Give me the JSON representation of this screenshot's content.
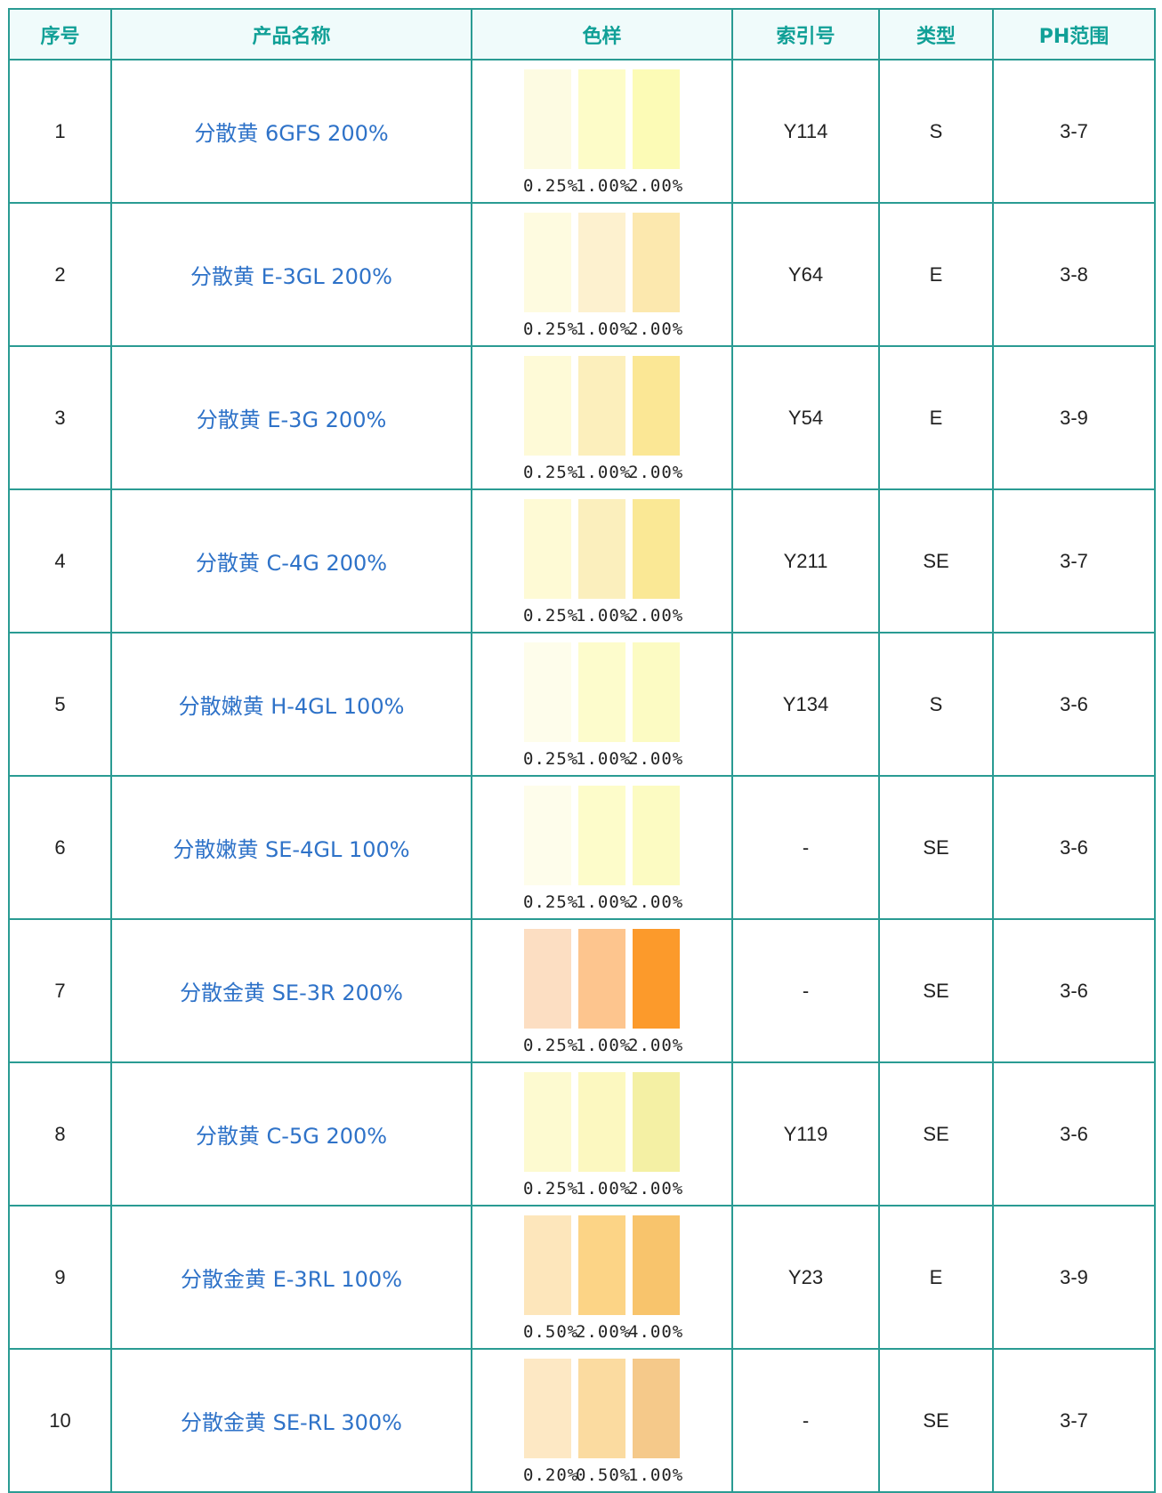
{
  "headers": {
    "no": "序号",
    "name": "产品名称",
    "sample": "色样",
    "index": "索引号",
    "type": "类型",
    "ph": "PH范围"
  },
  "rows": [
    {
      "no": "1",
      "name": "分散黄 6GFS 200%",
      "index": "Y114",
      "type": "S",
      "ph": "3-7",
      "swatches": [
        "#fdfbe2",
        "#fdfcc8",
        "#fcfbb6"
      ],
      "labels": [
        "0.25%",
        "1.00%",
        "2.00%"
      ]
    },
    {
      "no": "2",
      "name": "分散黄 E-3GL 200%",
      "index": "Y64",
      "type": "E",
      "ph": "3-8",
      "swatches": [
        "#fefbe0",
        "#fdf1cf",
        "#fce8ae"
      ],
      "labels": [
        "0.25%",
        "1.00%",
        "2.00%"
      ]
    },
    {
      "no": "3",
      "name": "分散黄 E-3G 200%",
      "index": "Y54",
      "type": "E",
      "ph": "3-9",
      "swatches": [
        "#fefad7",
        "#fcefbc",
        "#fbe795"
      ],
      "labels": [
        "0.25%",
        "1.00%",
        "2.00%"
      ]
    },
    {
      "no": "4",
      "name": "分散黄 C-4G 200%",
      "index": "Y211",
      "type": "SE",
      "ph": "3-7",
      "swatches": [
        "#fefad5",
        "#fbefbd",
        "#fae895"
      ],
      "labels": [
        "0.25%",
        "1.00%",
        "2.00%"
      ]
    },
    {
      "no": "5",
      "name": "分散嫩黄 H-4GL 100%",
      "index": "Y134",
      "type": "S",
      "ph": "3-6",
      "swatches": [
        "#fefdeb",
        "#fdfccc",
        "#fcfbc3"
      ],
      "labels": [
        "0.25%",
        "1.00%",
        "2.00%"
      ]
    },
    {
      "no": "6",
      "name": "分散嫩黄 SE-4GL 100%",
      "index": "-",
      "type": "SE",
      "ph": "3-6",
      "swatches": [
        "#fefdeb",
        "#fdfcca",
        "#fcfbc2"
      ],
      "labels": [
        "0.25%",
        "1.00%",
        "2.00%"
      ]
    },
    {
      "no": "7",
      "name": "分散金黄 SE-3R 200%",
      "index": "-",
      "type": "SE",
      "ph": "3-6",
      "swatches": [
        "#fcdec2",
        "#fdc58e",
        "#fc9a2b"
      ],
      "labels": [
        "0.25%",
        "1.00%",
        "2.00%"
      ]
    },
    {
      "no": "8",
      "name": "分散黄 C-5G 200%",
      "index": "Y119",
      "type": "SE",
      "ph": "3-6",
      "swatches": [
        "#fdfad0",
        "#fcf8c0",
        "#f4f0a4"
      ],
      "labels": [
        "0.25%",
        "1.00%",
        "2.00%"
      ]
    },
    {
      "no": "9",
      "name": "分散金黄 E-3RL 100%",
      "index": "Y23",
      "type": "E",
      "ph": "3-9",
      "swatches": [
        "#fde6bb",
        "#fcd486",
        "#f8c46c"
      ],
      "labels": [
        "0.50%",
        "2.00%",
        "4.00%"
      ]
    },
    {
      "no": "10",
      "name": "分散金黄 SE-RL 300%",
      "index": "-",
      "type": "SE",
      "ph": "3-7",
      "swatches": [
        "#fde8c4",
        "#fbdba0",
        "#f5c98a"
      ],
      "labels": [
        "0.20%",
        "0.50%",
        "1.00%"
      ]
    }
  ]
}
